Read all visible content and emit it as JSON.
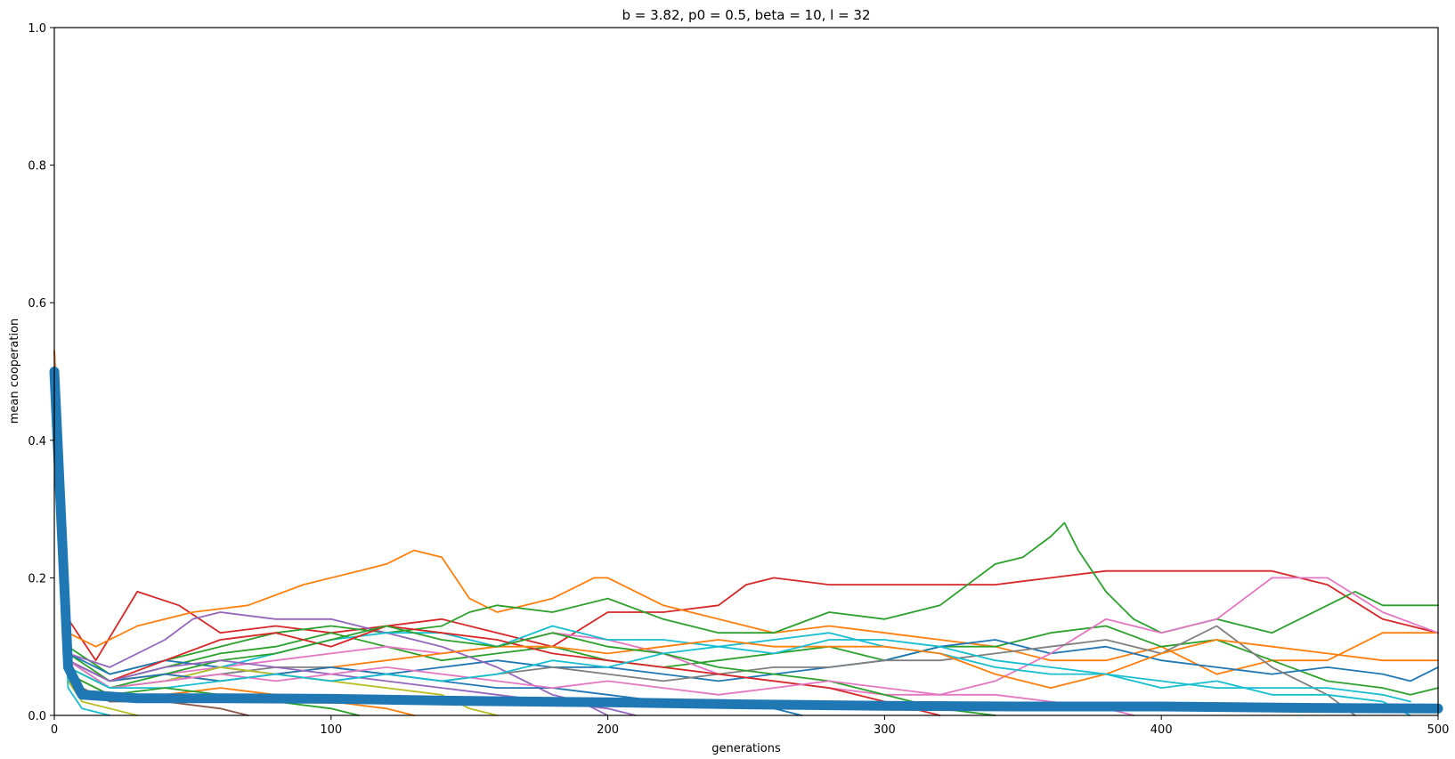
{
  "chart_data": {
    "type": "line",
    "title": "b = 3.82, p0 = 0.5, beta = 10, l = 32",
    "xlabel": "generations",
    "ylabel": "mean cooperation",
    "xlim": [
      0,
      500
    ],
    "ylim": [
      0,
      1.0
    ],
    "xticks": [
      0,
      100,
      200,
      300,
      400,
      500
    ],
    "yticks": [
      0.0,
      0.2,
      0.4,
      0.6,
      0.8,
      1.0
    ],
    "ytick_labels": [
      "0.0",
      "0.2",
      "0.4",
      "0.6",
      "0.8",
      "1.0"
    ],
    "grid": false,
    "legend": "none",
    "series": [
      {
        "color": "#d62728",
        "x": [
          0,
          5,
          15,
          30,
          45,
          60,
          80,
          100,
          120,
          140,
          160,
          180,
          200,
          220,
          240,
          250,
          260,
          280,
          300,
          320,
          340,
          360,
          380,
          400,
          420,
          440,
          460,
          480,
          500
        ],
        "values": [
          0.53,
          0.14,
          0.08,
          0.18,
          0.16,
          0.12,
          0.13,
          0.12,
          0.13,
          0.14,
          0.12,
          0.1,
          0.15,
          0.15,
          0.16,
          0.19,
          0.2,
          0.19,
          0.19,
          0.19,
          0.19,
          0.2,
          0.21,
          0.21,
          0.21,
          0.21,
          0.19,
          0.14,
          0.12
        ]
      },
      {
        "color": "#ff7f0e",
        "x": [
          0,
          5,
          15,
          30,
          50,
          70,
          90,
          110,
          120,
          130,
          140,
          150,
          160,
          180,
          195,
          200,
          220,
          240,
          260,
          280,
          300,
          320,
          340,
          360,
          380,
          400,
          420,
          440,
          460,
          480,
          500
        ],
        "values": [
          0.53,
          0.12,
          0.1,
          0.13,
          0.15,
          0.16,
          0.19,
          0.21,
          0.22,
          0.24,
          0.23,
          0.17,
          0.15,
          0.17,
          0.2,
          0.2,
          0.16,
          0.14,
          0.12,
          0.13,
          0.12,
          0.11,
          0.1,
          0.08,
          0.08,
          0.1,
          0.06,
          0.08,
          0.08,
          0.12,
          0.12
        ]
      },
      {
        "color": "#2ca02c",
        "x": [
          0,
          5,
          20,
          40,
          60,
          80,
          100,
          120,
          140,
          150,
          160,
          180,
          200,
          220,
          240,
          260,
          280,
          300,
          320,
          340,
          350,
          360,
          365,
          370,
          380,
          390,
          400,
          420,
          440,
          460,
          470,
          480,
          500
        ],
        "values": [
          0.5,
          0.1,
          0.06,
          0.08,
          0.1,
          0.12,
          0.13,
          0.12,
          0.13,
          0.15,
          0.16,
          0.15,
          0.17,
          0.14,
          0.12,
          0.12,
          0.15,
          0.14,
          0.16,
          0.22,
          0.23,
          0.26,
          0.28,
          0.24,
          0.18,
          0.14,
          0.12,
          0.14,
          0.12,
          0.16,
          0.18,
          0.16,
          0.16
        ]
      },
      {
        "color": "#2ca02c",
        "x": [
          0,
          5,
          20,
          40,
          60,
          80,
          100,
          120,
          140,
          160,
          180,
          200,
          220,
          240,
          260,
          280,
          300,
          320,
          340,
          360,
          380,
          400,
          420,
          440,
          460,
          480,
          490,
          500
        ],
        "values": [
          0.5,
          0.09,
          0.05,
          0.07,
          0.09,
          0.1,
          0.12,
          0.1,
          0.08,
          0.09,
          0.1,
          0.08,
          0.07,
          0.08,
          0.09,
          0.1,
          0.08,
          0.1,
          0.1,
          0.12,
          0.13,
          0.1,
          0.11,
          0.08,
          0.05,
          0.04,
          0.03,
          0.04
        ]
      },
      {
        "color": "#1f77b4",
        "x": [
          0,
          5,
          20,
          40,
          60,
          80,
          100,
          120,
          140,
          160,
          180,
          200,
          220,
          240,
          260,
          280,
          300,
          320,
          340,
          360,
          380,
          400,
          420,
          440,
          460,
          480,
          490,
          500
        ],
        "values": [
          0.5,
          0.09,
          0.06,
          0.08,
          0.07,
          0.06,
          0.05,
          0.06,
          0.07,
          0.08,
          0.07,
          0.07,
          0.06,
          0.05,
          0.06,
          0.07,
          0.08,
          0.1,
          0.11,
          0.09,
          0.1,
          0.08,
          0.07,
          0.06,
          0.07,
          0.06,
          0.05,
          0.07
        ]
      },
      {
        "color": "#9467bd",
        "x": [
          0,
          5,
          20,
          40,
          50,
          60,
          80,
          100,
          120,
          140,
          160,
          170,
          180,
          190,
          200
        ],
        "values": [
          0.5,
          0.09,
          0.07,
          0.11,
          0.14,
          0.15,
          0.14,
          0.14,
          0.12,
          0.1,
          0.07,
          0.05,
          0.03,
          0.02,
          0.0
        ]
      },
      {
        "color": "#e377c2",
        "x": [
          0,
          5,
          20,
          40,
          60,
          80,
          100,
          120,
          140,
          160,
          180,
          200,
          220,
          240,
          260,
          280,
          300,
          320,
          340,
          360,
          380,
          400,
          420,
          440,
          460,
          480,
          500
        ],
        "values": [
          0.5,
          0.08,
          0.05,
          0.06,
          0.07,
          0.08,
          0.09,
          0.1,
          0.09,
          0.1,
          0.12,
          0.11,
          0.09,
          0.06,
          0.05,
          0.04,
          0.03,
          0.03,
          0.05,
          0.09,
          0.14,
          0.12,
          0.14,
          0.2,
          0.2,
          0.15,
          0.12
        ]
      },
      {
        "color": "#7f7f7f",
        "x": [
          0,
          5,
          20,
          40,
          60,
          80,
          100,
          120,
          140,
          160,
          180,
          200,
          220,
          240,
          260,
          280,
          300,
          320,
          340,
          360,
          380,
          400,
          420,
          440,
          460,
          470
        ],
        "values": [
          0.5,
          0.08,
          0.04,
          0.05,
          0.06,
          0.07,
          0.07,
          0.06,
          0.05,
          0.06,
          0.07,
          0.06,
          0.05,
          0.06,
          0.07,
          0.07,
          0.08,
          0.08,
          0.09,
          0.1,
          0.11,
          0.09,
          0.13,
          0.07,
          0.03,
          0.0
        ]
      },
      {
        "color": "#17becf",
        "x": [
          0,
          5,
          20,
          40,
          60,
          80,
          100,
          120,
          140,
          160,
          180,
          200,
          220,
          240,
          260,
          280,
          300,
          320,
          340,
          360,
          380,
          400,
          420,
          440,
          460,
          480,
          490
        ],
        "values": [
          0.5,
          0.08,
          0.04,
          0.05,
          0.07,
          0.09,
          0.11,
          0.12,
          0.12,
          0.1,
          0.13,
          0.11,
          0.11,
          0.1,
          0.11,
          0.12,
          0.1,
          0.09,
          0.07,
          0.06,
          0.06,
          0.04,
          0.05,
          0.03,
          0.03,
          0.02,
          0.0
        ]
      },
      {
        "color": "#bcbd22",
        "x": [
          0,
          5,
          20,
          40,
          60,
          80,
          100,
          120,
          140,
          150,
          160
        ],
        "values": [
          0.5,
          0.07,
          0.04,
          0.05,
          0.07,
          0.06,
          0.05,
          0.04,
          0.03,
          0.01,
          0.0
        ]
      },
      {
        "color": "#d62728",
        "x": [
          0,
          5,
          20,
          40,
          60,
          80,
          100,
          120,
          140,
          160,
          180,
          200,
          220,
          240,
          260,
          280,
          300,
          320
        ],
        "values": [
          0.5,
          0.08,
          0.05,
          0.08,
          0.11,
          0.12,
          0.1,
          0.13,
          0.12,
          0.11,
          0.09,
          0.08,
          0.07,
          0.06,
          0.05,
          0.04,
          0.02,
          0.0
        ]
      },
      {
        "color": "#ff7f0e",
        "x": [
          0,
          5,
          20,
          40,
          60,
          80,
          100,
          120,
          140,
          160,
          180,
          200,
          220,
          240,
          260,
          280,
          300,
          320,
          340,
          360,
          380,
          400,
          420,
          440,
          460,
          480,
          500
        ],
        "values": [
          0.5,
          0.08,
          0.05,
          0.06,
          0.05,
          0.06,
          0.07,
          0.08,
          0.09,
          0.1,
          0.1,
          0.09,
          0.1,
          0.11,
          0.1,
          0.1,
          0.1,
          0.09,
          0.06,
          0.04,
          0.06,
          0.09,
          0.11,
          0.1,
          0.09,
          0.08,
          0.08
        ]
      },
      {
        "color": "#2ca02c",
        "x": [
          0,
          5,
          20,
          40,
          60,
          80,
          100,
          120,
          140,
          160,
          180,
          200,
          220,
          240,
          260,
          280,
          300,
          320,
          340
        ],
        "values": [
          0.5,
          0.07,
          0.04,
          0.06,
          0.08,
          0.09,
          0.11,
          0.13,
          0.11,
          0.1,
          0.12,
          0.1,
          0.09,
          0.07,
          0.06,
          0.05,
          0.03,
          0.01,
          0.0
        ]
      },
      {
        "color": "#1f77b4",
        "x": [
          0,
          5,
          20,
          40,
          60,
          80,
          100,
          120,
          140,
          160,
          180,
          200,
          220,
          240,
          260,
          270
        ],
        "values": [
          0.5,
          0.08,
          0.05,
          0.06,
          0.05,
          0.06,
          0.07,
          0.06,
          0.05,
          0.04,
          0.04,
          0.03,
          0.02,
          0.02,
          0.01,
          0.0
        ]
      },
      {
        "color": "#9467bd",
        "x": [
          0,
          5,
          20,
          40,
          60,
          80,
          100,
          120,
          140,
          160,
          180,
          200,
          210
        ],
        "values": [
          0.5,
          0.08,
          0.05,
          0.07,
          0.08,
          0.07,
          0.06,
          0.05,
          0.04,
          0.03,
          0.02,
          0.01,
          0.0
        ]
      },
      {
        "color": "#e377c2",
        "x": [
          0,
          5,
          20,
          40,
          60,
          80,
          100,
          120,
          140,
          160,
          180,
          200,
          220,
          240,
          260,
          280,
          300,
          320,
          340,
          360,
          380,
          390
        ],
        "values": [
          0.5,
          0.08,
          0.04,
          0.05,
          0.06,
          0.05,
          0.06,
          0.07,
          0.06,
          0.05,
          0.04,
          0.05,
          0.04,
          0.03,
          0.04,
          0.05,
          0.04,
          0.03,
          0.03,
          0.02,
          0.01,
          0.0
        ]
      },
      {
        "color": "#17becf",
        "x": [
          0,
          5,
          20,
          40,
          60,
          80,
          100,
          120,
          140,
          160,
          180,
          200,
          220,
          240,
          260,
          280,
          300,
          320,
          340,
          360,
          380,
          400,
          420,
          440,
          460,
          480,
          490
        ],
        "values": [
          0.5,
          0.07,
          0.04,
          0.04,
          0.05,
          0.06,
          0.05,
          0.06,
          0.05,
          0.06,
          0.08,
          0.07,
          0.09,
          0.1,
          0.09,
          0.11,
          0.11,
          0.1,
          0.08,
          0.07,
          0.06,
          0.05,
          0.04,
          0.04,
          0.04,
          0.03,
          0.02
        ]
      },
      {
        "color": "#ff7f0e",
        "x": [
          0,
          5,
          20,
          40,
          60,
          80,
          100,
          120,
          130
        ],
        "values": [
          0.5,
          0.06,
          0.03,
          0.03,
          0.04,
          0.03,
          0.02,
          0.01,
          0.0
        ]
      },
      {
        "color": "#2ca02c",
        "x": [
          0,
          5,
          20,
          40,
          60,
          80,
          100,
          110
        ],
        "values": [
          0.5,
          0.06,
          0.03,
          0.04,
          0.03,
          0.02,
          0.01,
          0.0
        ]
      },
      {
        "color": "#8c564b",
        "x": [
          0,
          5,
          20,
          40,
          60,
          70
        ],
        "values": [
          0.5,
          0.05,
          0.02,
          0.02,
          0.01,
          0.0
        ]
      },
      {
        "color": "#bcbd22",
        "x": [
          0,
          5,
          10,
          20,
          30
        ],
        "values": [
          0.5,
          0.05,
          0.02,
          0.01,
          0.0
        ]
      },
      {
        "color": "#17becf",
        "x": [
          0,
          5,
          10,
          20
        ],
        "values": [
          0.5,
          0.04,
          0.01,
          0.0
        ]
      },
      {
        "color": "#1f77b4",
        "x": [
          0,
          5,
          10,
          30,
          60,
          100,
          150,
          200,
          250,
          300,
          350,
          400,
          450,
          500
        ],
        "values": [
          0.5,
          0.07,
          0.03,
          0.025,
          0.025,
          0.024,
          0.021,
          0.019,
          0.016,
          0.014,
          0.013,
          0.013,
          0.011,
          0.01
        ],
        "thick": true
      }
    ]
  }
}
